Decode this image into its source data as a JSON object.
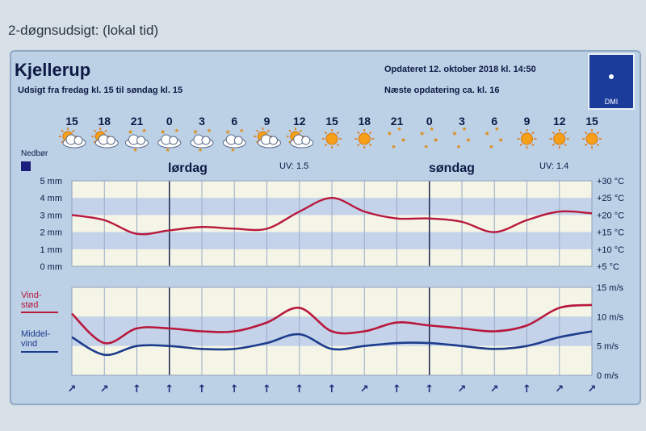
{
  "page": {
    "heading": "2-døgnsudsigt: (lokal tid)"
  },
  "header": {
    "title": "Kjellerup",
    "subtitle": "Udsigt fra fredag kl. 15 til søndag kl. 15",
    "updated": "Opdateret 12. oktober 2018 kl. 14:50",
    "next_update": "Næste opdatering ca. kl. 16",
    "logo_text": "DMI"
  },
  "forecast": {
    "hours": [
      "15",
      "18",
      "21",
      "0",
      "3",
      "6",
      "9",
      "12",
      "15",
      "18",
      "21",
      "0",
      "3",
      "6",
      "9",
      "12",
      "15"
    ],
    "icons": [
      "partly-cloudy-day-icon",
      "partly-cloudy-day-icon",
      "cloudy-night-icon",
      "cloudy-night-icon",
      "cloudy-night-icon",
      "cloudy-night-icon",
      "partly-cloudy-day-icon",
      "partly-cloudy-day-icon",
      "sun-icon",
      "sun-icon",
      "clear-night-icon",
      "clear-night-icon",
      "clear-night-icon",
      "clear-night-icon",
      "sun-icon",
      "sun-icon",
      "sun-icon"
    ],
    "precip_label": "Nedbør",
    "days": [
      {
        "label": "lørdag",
        "uv": "UV: 1.5"
      },
      {
        "label": "søndag",
        "uv": "UV: 1.4"
      }
    ],
    "wind_directions": [
      "↗",
      "↗",
      "↑",
      "↑",
      "↑",
      "↑",
      "↑",
      "↑",
      "↑",
      "↗",
      "↑",
      "↑",
      "↗",
      "↗",
      "↑",
      "↗",
      "↗"
    ]
  },
  "legend": {
    "gust_line1": "Vind-",
    "gust_line2": "stød",
    "mean_line1": "Middel-",
    "mean_line2": "vind",
    "gust_color": "#b8183c",
    "mean_color": "#1c3c8c"
  },
  "chart_data": [
    {
      "type": "line",
      "x": [
        "15",
        "18",
        "21",
        "0",
        "3",
        "6",
        "9",
        "12",
        "15",
        "18",
        "21",
        "0",
        "3",
        "6",
        "9",
        "12",
        "15"
      ],
      "y_left_ticks": [
        "0 mm",
        "1 mm",
        "2 mm",
        "3 mm",
        "4 mm",
        "5 mm"
      ],
      "y_right_ticks": [
        "+5 °C",
        "+10 °C",
        "+15 °C",
        "+20 °C",
        "+25 °C",
        "+30 °C"
      ],
      "ylim_left": [
        0,
        5
      ],
      "ylim_right": [
        5,
        30
      ],
      "grid": true,
      "series": [
        {
          "color": "#b8183c",
          "axis": "right",
          "values": [
            20,
            18.5,
            14.5,
            15.5,
            16.5,
            16,
            16,
            21,
            25,
            21,
            19,
            19,
            18,
            15,
            18.5,
            21,
            20.5
          ]
        }
      ],
      "precipitation": [
        0,
        0,
        0,
        0,
        0,
        0,
        0,
        0,
        0,
        0,
        0,
        0,
        0,
        0,
        0,
        0,
        0
      ]
    },
    {
      "type": "line",
      "x": [
        "15",
        "18",
        "21",
        "0",
        "3",
        "6",
        "9",
        "12",
        "15",
        "18",
        "21",
        "0",
        "3",
        "6",
        "9",
        "12",
        "15"
      ],
      "y_right_ticks": [
        "0 m/s",
        "5 m/s",
        "10 m/s",
        "15 m/s"
      ],
      "ylim": [
        0,
        15
      ],
      "grid": true,
      "series": [
        {
          "name": "Vindstød",
          "color": "#b8183c",
          "values": [
            10.5,
            5.5,
            8,
            8,
            7.5,
            7.5,
            9,
            11.5,
            7.5,
            7.5,
            9,
            8.5,
            8,
            7.5,
            8.5,
            11.5,
            12
          ]
        },
        {
          "name": "Middelvind",
          "color": "#1c3c8c",
          "values": [
            6.5,
            3.5,
            5,
            5,
            4.5,
            4.5,
            5.5,
            7,
            4.5,
            5,
            5.5,
            5.5,
            5,
            4.5,
            5,
            6.5,
            7.5
          ]
        }
      ]
    }
  ]
}
